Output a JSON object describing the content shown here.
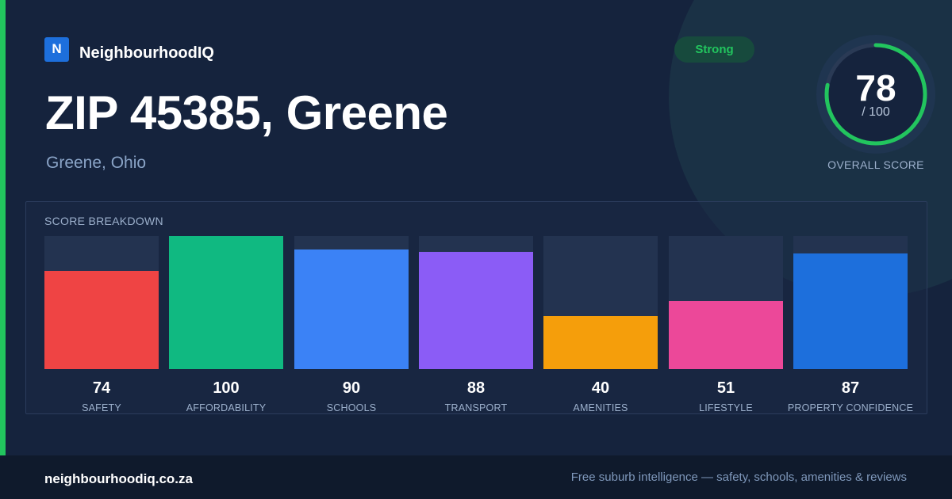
{
  "brand": {
    "logo_letter": "N",
    "name": "NeighbourhoodIQ"
  },
  "header": {
    "title": "ZIP 45385, Greene",
    "subtitle": "Greene, Ohio",
    "badge": "Strong"
  },
  "overall": {
    "score": "78",
    "max_label": "/ 100",
    "label": "OVERALL SCORE",
    "fraction": 0.78,
    "ring_color": "#22c55e"
  },
  "breakdown": {
    "title": "SCORE BREAKDOWN",
    "items": [
      {
        "label": "SAFETY",
        "value": 74,
        "color": "#ef4444"
      },
      {
        "label": "AFFORDABILITY",
        "value": 100,
        "color": "#10b981"
      },
      {
        "label": "SCHOOLS",
        "value": 90,
        "color": "#3b82f6"
      },
      {
        "label": "TRANSPORT",
        "value": 88,
        "color": "#8b5cf6"
      },
      {
        "label": "AMENITIES",
        "value": 40,
        "color": "#f59e0b"
      },
      {
        "label": "LIFESTYLE",
        "value": 51,
        "color": "#ec4899"
      },
      {
        "label": "PROPERTY CONFIDENCE",
        "value": 87,
        "color": "#1d6fdc"
      }
    ]
  },
  "footer": {
    "site": "neighbourhoodiq.co.za",
    "tagline": "Free suburb intelligence — safety, schools, amenities & reviews"
  }
}
